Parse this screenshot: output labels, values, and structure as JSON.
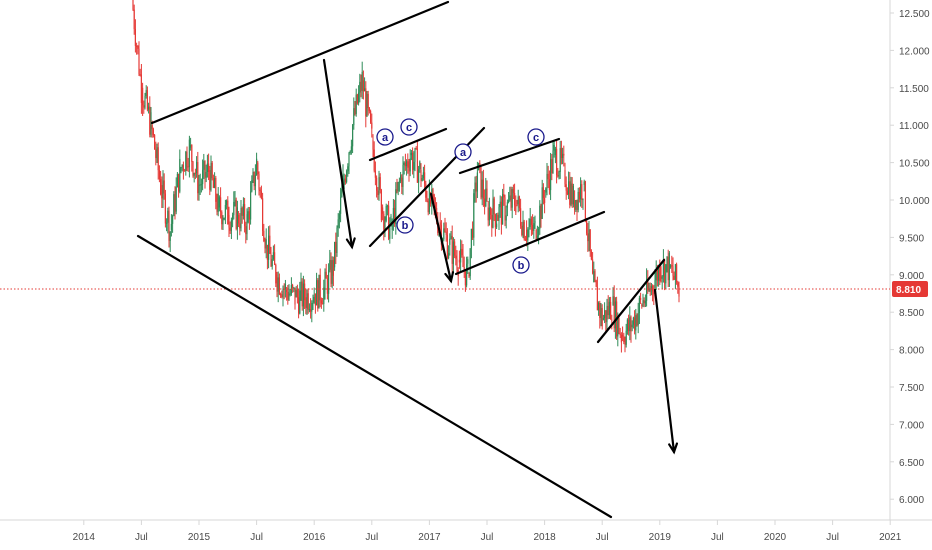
{
  "chart_data": {
    "type": "candlestick",
    "title": "",
    "xlabel": "",
    "ylabel": "",
    "x_tick_labels": [
      "2014",
      "Jul",
      "2015",
      "Jul",
      "2016",
      "Jul",
      "2017",
      "Jul",
      "2018",
      "Jul",
      "2019",
      "Jul",
      "2020",
      "Jul",
      "2021"
    ],
    "y_tick_labels": [
      "12.500",
      "12.000",
      "11.500",
      "11.000",
      "10.500",
      "10.000",
      "9.500",
      "9.000",
      "8.500",
      "8.000",
      "7.500",
      "7.000",
      "6.500",
      "6.000"
    ],
    "ylim": [
      5.6,
      12.8
    ],
    "xlim": [
      "2013-10",
      "2021-04"
    ],
    "grid": false,
    "current_price": {
      "value": 8.81,
      "label": "8.810",
      "color": "#e53935"
    },
    "colors": {
      "up": "#2e8b57",
      "down": "#e53935",
      "lines": "#000000",
      "wave_labels": "#1a1a8c"
    },
    "series": [
      {
        "values": [
          [
            "2014-06",
            12.7
          ],
          [
            "2014-07",
            11.5
          ],
          [
            "2014-08",
            11.0
          ],
          [
            "2014-09",
            10.2
          ],
          [
            "2014-10",
            9.6
          ],
          [
            "2014-11",
            10.4
          ],
          [
            "2014-12",
            10.7
          ],
          [
            "2015-01",
            10.2
          ],
          [
            "2015-02",
            10.4
          ],
          [
            "2015-03",
            9.9
          ],
          [
            "2015-04",
            9.8
          ],
          [
            "2015-05",
            9.8
          ],
          [
            "2015-06",
            9.7
          ],
          [
            "2015-07",
            10.5
          ],
          [
            "2015-08",
            9.4
          ],
          [
            "2015-09",
            9.0
          ],
          [
            "2015-10",
            8.8
          ],
          [
            "2015-11",
            8.7
          ],
          [
            "2015-12",
            8.7
          ],
          [
            "2016-01",
            8.75
          ],
          [
            "2016-02",
            8.8
          ],
          [
            "2016-03",
            9.1
          ],
          [
            "2016-04",
            10.2
          ],
          [
            "2016-05",
            11.0
          ],
          [
            "2016-06",
            11.6
          ],
          [
            "2016-07",
            10.8
          ],
          [
            "2016-08",
            9.9
          ],
          [
            "2016-09",
            9.6
          ],
          [
            "2016-10",
            10.3
          ],
          [
            "2016-11",
            10.6
          ],
          [
            "2016-12",
            10.4
          ],
          [
            "2017-01",
            10.0
          ],
          [
            "2017-02",
            9.7
          ],
          [
            "2017-03",
            9.4
          ],
          [
            "2017-04",
            9.2
          ],
          [
            "2017-05",
            9.0
          ],
          [
            "2017-06",
            10.4
          ],
          [
            "2017-07",
            9.9
          ],
          [
            "2017-08",
            9.8
          ],
          [
            "2017-09",
            9.9
          ],
          [
            "2017-10",
            10.0
          ],
          [
            "2017-11",
            9.6
          ],
          [
            "2017-12",
            9.6
          ],
          [
            "2018-01",
            10.1
          ],
          [
            "2018-02",
            10.6
          ],
          [
            "2018-03",
            10.4
          ],
          [
            "2018-04",
            10.0
          ],
          [
            "2018-05",
            10.2
          ],
          [
            "2018-06",
            8.9
          ],
          [
            "2018-07",
            8.4
          ],
          [
            "2018-08",
            8.6
          ],
          [
            "2018-09",
            8.2
          ],
          [
            "2018-10",
            8.3
          ],
          [
            "2018-11",
            8.6
          ],
          [
            "2018-12",
            8.8
          ],
          [
            "2019-01",
            9.1
          ],
          [
            "2019-02",
            9.1
          ],
          [
            "2019-03",
            8.81
          ]
        ]
      }
    ],
    "annotations": [
      {
        "type": "text",
        "label": "a",
        "x": "2016-11",
        "y": 10.83
      },
      {
        "type": "text",
        "label": "c",
        "x": "2017-01",
        "y": 10.95
      },
      {
        "type": "text",
        "label": "b",
        "x": "2017-01",
        "y": 9.83
      },
      {
        "type": "text",
        "label": "a",
        "x": "2017-07",
        "y": 10.6
      },
      {
        "type": "text",
        "label": "c",
        "x": "2018-03",
        "y": 10.85
      },
      {
        "type": "text",
        "label": "b",
        "x": "2018-03",
        "y": 9.11
      }
    ]
  }
}
